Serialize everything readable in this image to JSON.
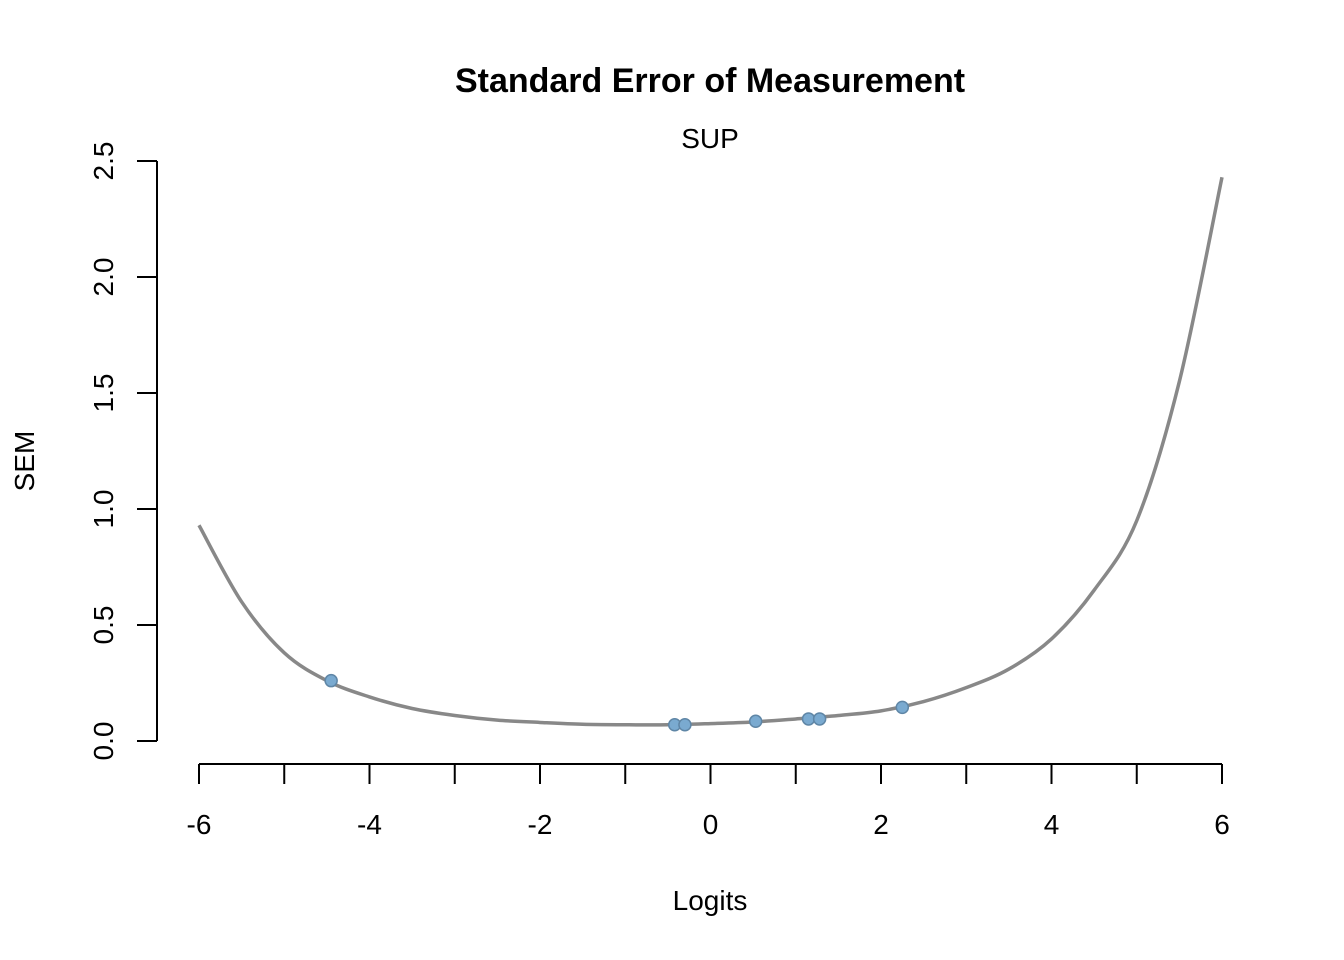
{
  "chart_data": {
    "type": "line",
    "title": "Standard Error of Measurement",
    "subtitle": "SUP",
    "xlabel": "Logits",
    "ylabel": "SEM",
    "xlim": [
      -6,
      6
    ],
    "ylim": [
      0,
      2.5
    ],
    "x_ticks": [
      -6,
      -5,
      -4,
      -3,
      -2,
      -1,
      0,
      1,
      2,
      3,
      4,
      5,
      6
    ],
    "x_tick_labels": [
      "-6",
      "",
      "-4",
      "",
      "-2",
      "",
      "0",
      "",
      "2",
      "",
      "4",
      "",
      "6"
    ],
    "y_ticks": [
      0,
      0.5,
      1.0,
      1.5,
      2.0,
      2.5
    ],
    "y_tick_labels": [
      "0.0",
      "0.5",
      "1.0",
      "1.5",
      "2.0",
      "2.5"
    ],
    "grid": false,
    "curve": {
      "x": [
        -6.0,
        -5.5,
        -5.0,
        -4.5,
        -4.0,
        -3.5,
        -3.0,
        -2.5,
        -2.0,
        -1.5,
        -1.0,
        -0.5,
        0.0,
        0.5,
        1.0,
        1.5,
        2.0,
        2.5,
        3.0,
        3.5,
        4.0,
        4.5,
        5.0,
        5.5,
        6.0
      ],
      "y": [
        0.93,
        0.6,
        0.38,
        0.26,
        0.19,
        0.14,
        0.11,
        0.09,
        0.08,
        0.072,
        0.07,
        0.07,
        0.075,
        0.082,
        0.095,
        0.11,
        0.13,
        0.17,
        0.23,
        0.31,
        0.44,
        0.65,
        0.95,
        1.55,
        2.43
      ],
      "color": "#888888"
    },
    "points": {
      "x": [
        -4.45,
        -0.42,
        -0.3,
        0.53,
        1.15,
        1.28,
        2.25
      ],
      "y": [
        0.26,
        0.07,
        0.07,
        0.085,
        0.095,
        0.095,
        0.145
      ],
      "fill": "#7aaad0",
      "stroke": "#5f86a6"
    }
  }
}
